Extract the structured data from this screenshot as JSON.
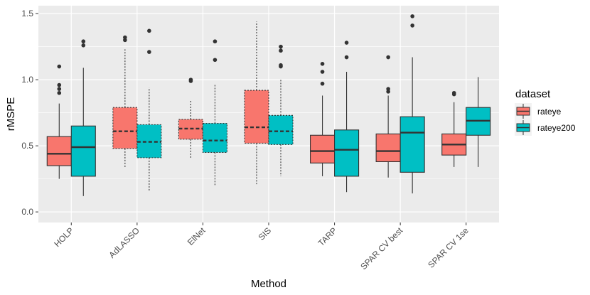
{
  "chart_data": {
    "type": "boxplot",
    "title": "",
    "xlabel": "Method",
    "ylabel": "rMSPE",
    "ylim": [
      -0.08,
      1.56
    ],
    "yticks": [
      0.0,
      0.5,
      1.0,
      1.5
    ],
    "ytick_labels": [
      "0.0",
      "0.5",
      "1.0",
      "1.5"
    ],
    "categories": [
      "HOLP",
      "AdLASSO",
      "ElNet",
      "SIS",
      "TARP",
      "SPAR CV best",
      "SPAR CV 1se"
    ],
    "legend": {
      "title": "dataset",
      "position": "right",
      "entries": [
        "rateye",
        "rateye200"
      ]
    },
    "series": [
      {
        "name": "rateye",
        "color": "#F8766D",
        "boxes": [
          {
            "category": "HOLP",
            "whisker_low": 0.25,
            "q1": 0.35,
            "median": 0.44,
            "q3": 0.57,
            "whisker_high": 0.82,
            "outliers": [
              0.9,
              0.93,
              0.96,
              1.1
            ],
            "dashed": false
          },
          {
            "category": "AdLASSO",
            "whisker_low": 0.33,
            "q1": 0.48,
            "median": 0.61,
            "q3": 0.79,
            "whisker_high": 1.23,
            "outliers": [
              1.3,
              1.32
            ],
            "dashed": true
          },
          {
            "category": "ElNet",
            "whisker_low": 0.41,
            "q1": 0.55,
            "median": 0.63,
            "q3": 0.7,
            "whisker_high": 0.84,
            "outliers": [
              0.99,
              1.0
            ],
            "dashed": true
          },
          {
            "category": "SIS",
            "whisker_low": 0.21,
            "q1": 0.52,
            "median": 0.64,
            "q3": 0.92,
            "whisker_high": 1.44,
            "outliers": [],
            "dashed": true
          },
          {
            "category": "TARP",
            "whisker_low": 0.27,
            "q1": 0.37,
            "median": 0.46,
            "q3": 0.58,
            "whisker_high": 0.88,
            "outliers": [
              0.97,
              1.06,
              1.12
            ],
            "dashed": false
          },
          {
            "category": "SPAR CV best",
            "whisker_low": 0.26,
            "q1": 0.38,
            "median": 0.46,
            "q3": 0.59,
            "whisker_high": 0.88,
            "outliers": [
              0.91,
              0.93,
              1.17
            ],
            "dashed": false
          },
          {
            "category": "SPAR CV 1se",
            "whisker_low": 0.34,
            "q1": 0.43,
            "median": 0.51,
            "q3": 0.59,
            "whisker_high": 0.83,
            "outliers": [
              0.89,
              0.9
            ],
            "dashed": false
          }
        ]
      },
      {
        "name": "rateye200",
        "color": "#00BFC4",
        "boxes": [
          {
            "category": "HOLP",
            "whisker_low": 0.12,
            "q1": 0.27,
            "median": 0.49,
            "q3": 0.65,
            "whisker_high": 1.09,
            "outliers": [
              1.26,
              1.29
            ],
            "dashed": false
          },
          {
            "category": "AdLASSO",
            "whisker_low": 0.16,
            "q1": 0.41,
            "median": 0.53,
            "q3": 0.66,
            "whisker_high": 0.94,
            "outliers": [
              1.21,
              1.37
            ],
            "dashed": true
          },
          {
            "category": "ElNet",
            "whisker_low": 0.2,
            "q1": 0.45,
            "median": 0.54,
            "q3": 0.67,
            "whisker_high": 0.97,
            "outliers": [
              1.15,
              1.29
            ],
            "dashed": true
          },
          {
            "category": "SIS",
            "whisker_low": 0.27,
            "q1": 0.51,
            "median": 0.61,
            "q3": 0.73,
            "whisker_high": 1.0,
            "outliers": [
              1.1,
              1.11,
              1.22,
              1.25
            ],
            "dashed": true
          },
          {
            "category": "TARP",
            "whisker_low": 0.15,
            "q1": 0.27,
            "median": 0.47,
            "q3": 0.62,
            "whisker_high": 1.06,
            "outliers": [
              1.17,
              1.28
            ],
            "dashed": false
          },
          {
            "category": "SPAR CV best",
            "whisker_low": 0.14,
            "q1": 0.3,
            "median": 0.6,
            "q3": 0.72,
            "whisker_high": 1.17,
            "outliers": [
              1.41,
              1.48
            ],
            "dashed": false
          },
          {
            "category": "SPAR CV 1se",
            "whisker_low": 0.34,
            "q1": 0.58,
            "median": 0.69,
            "q3": 0.79,
            "whisker_high": 1.02,
            "outliers": [],
            "dashed": false
          }
        ]
      }
    ]
  }
}
